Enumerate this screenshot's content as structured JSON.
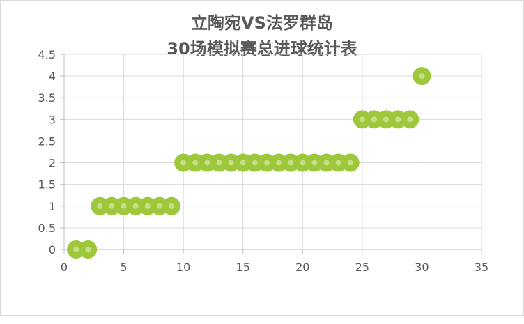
{
  "chart_data": {
    "type": "scatter",
    "title_line1": "立陶宛VS法罗群岛",
    "title_line2": "30场模拟赛总进球统计表",
    "xlabel": "",
    "ylabel": "",
    "xlim": [
      0,
      35
    ],
    "ylim": [
      0,
      4.5
    ],
    "x_ticks": [
      "0",
      "5",
      "10",
      "15",
      "20",
      "25",
      "30",
      "35"
    ],
    "y_ticks": [
      "0",
      "0.5",
      "1",
      "1.5",
      "2",
      "2.5",
      "3",
      "3.5",
      "4",
      "4.5"
    ],
    "grid": true,
    "legend": "none",
    "marker_color": "#9dc83c",
    "marker_center_color": "#c6df86",
    "x": [
      1,
      2,
      3,
      4,
      5,
      6,
      7,
      8,
      9,
      10,
      11,
      12,
      13,
      14,
      15,
      16,
      17,
      18,
      19,
      20,
      21,
      22,
      23,
      24,
      25,
      26,
      27,
      28,
      29,
      30
    ],
    "y": [
      0,
      0,
      1,
      1,
      1,
      1,
      1,
      1,
      1,
      2,
      2,
      2,
      2,
      2,
      2,
      2,
      2,
      2,
      2,
      2,
      2,
      2,
      2,
      2,
      3,
      3,
      3,
      3,
      3,
      4
    ]
  }
}
